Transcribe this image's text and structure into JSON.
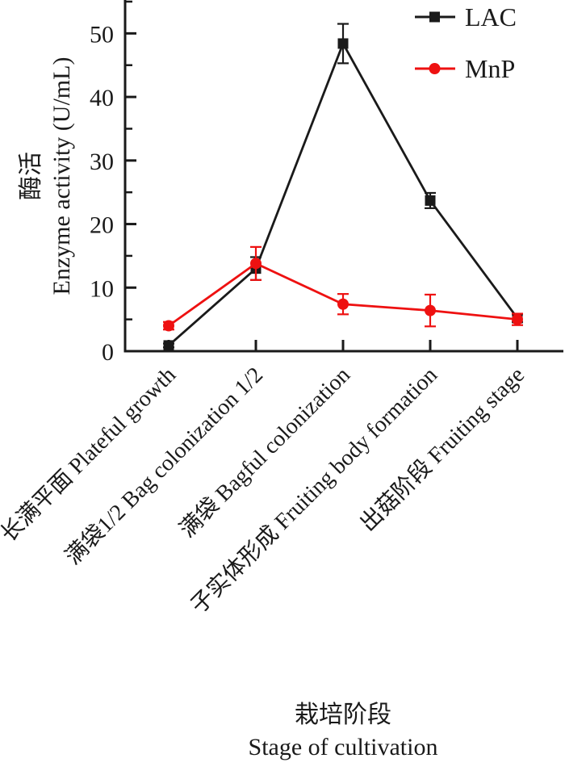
{
  "figure": {
    "background": "#ffffff",
    "text_color": "#1a1a1a"
  },
  "chart_data": {
    "type": "line",
    "title": "",
    "categories": [
      "长满平面 Plateful growth",
      "满袋1/2 Bag colonization 1/2",
      "满袋 Bagful colonization",
      "子实体形成 Fruiting body formation",
      "出菇阶段 Fruiting stage"
    ],
    "series": [
      {
        "name": "LAC",
        "color": "#1a1a1a",
        "marker": "square",
        "values": [
          0.9,
          13.0,
          48.4,
          23.7,
          5.2
        ],
        "errors": [
          0.3,
          1.8,
          3.1,
          1.2,
          0.6
        ]
      },
      {
        "name": "MnP",
        "color": "#ee1111",
        "marker": "circle",
        "values": [
          4.0,
          13.8,
          7.4,
          6.4,
          5.0
        ],
        "errors": [
          0.6,
          2.6,
          1.6,
          2.5,
          0.9
        ]
      }
    ],
    "xlabel_zh": "栽培阶段",
    "xlabel_en": "Stage of cultivation",
    "ylabel_zh": "酶活",
    "ylabel_en": "Enzyme activity (U/mL)",
    "ylim": [
      0,
      55
    ],
    "yticks": [
      0,
      10,
      20,
      30,
      40,
      50
    ],
    "minor_tick_step": 5,
    "grid": false,
    "legend_position": "top-right",
    "tick_direction": "in",
    "x_tick_label_rotation_deg": -45
  }
}
